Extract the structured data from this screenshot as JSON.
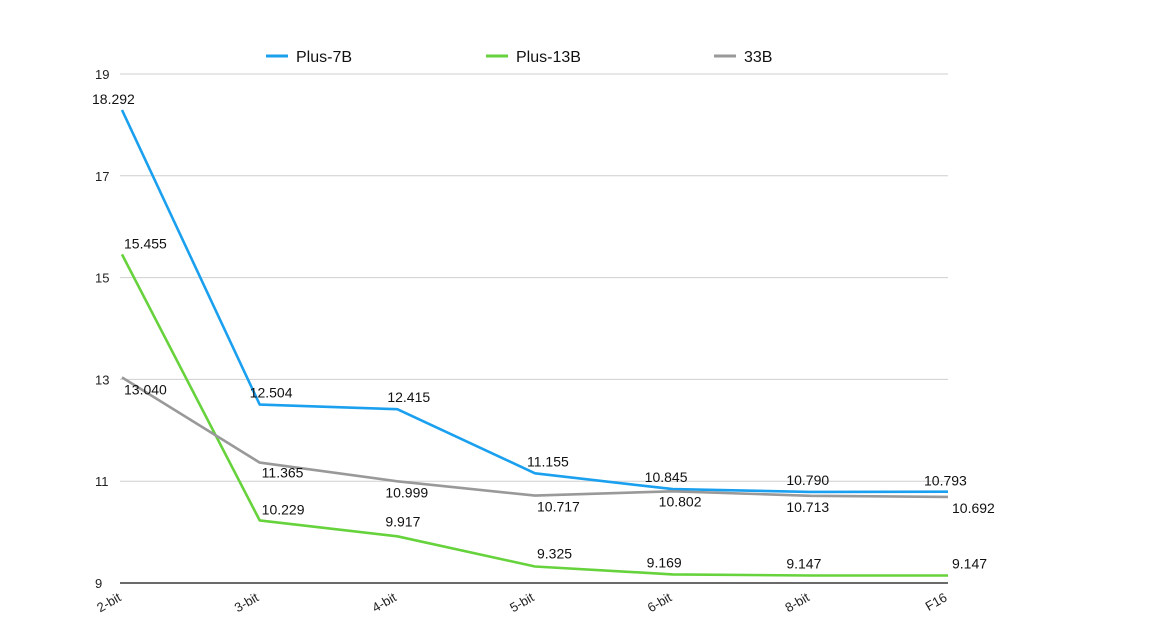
{
  "chart_data": {
    "type": "line",
    "categories": [
      "2-bit",
      "3-bit",
      "4-bit",
      "5-bit",
      "6-bit",
      "8-bit",
      "F16"
    ],
    "series": [
      {
        "name": "Plus-7B",
        "color": "#1aa0ee",
        "values": [
          18.292,
          12.504,
          12.415,
          11.155,
          10.845,
          10.79,
          10.793
        ],
        "labels": [
          "18.292",
          "12.504",
          "12.415",
          "11.155",
          "10.845",
          "10.790",
          "10.793"
        ]
      },
      {
        "name": "Plus-13B",
        "color": "#66d23c",
        "values": [
          15.455,
          10.229,
          9.917,
          9.325,
          9.169,
          9.147,
          9.147
        ],
        "labels": [
          "15.455",
          "10.229",
          "9.917",
          "9.325",
          "9.169",
          "9.147",
          "9.147"
        ]
      },
      {
        "name": "33B",
        "color": "#999999",
        "values": [
          13.04,
          11.365,
          10.999,
          10.717,
          10.802,
          10.713,
          10.692
        ],
        "labels": [
          "13.040",
          "11.365",
          "10.999",
          "10.717",
          "10.802",
          "10.713",
          "10.692"
        ]
      }
    ],
    "yticks": [
      "9",
      "11",
      "13",
      "15",
      "17",
      "19"
    ],
    "ylim": [
      9,
      19
    ],
    "grid": true,
    "legend_position": "top"
  }
}
